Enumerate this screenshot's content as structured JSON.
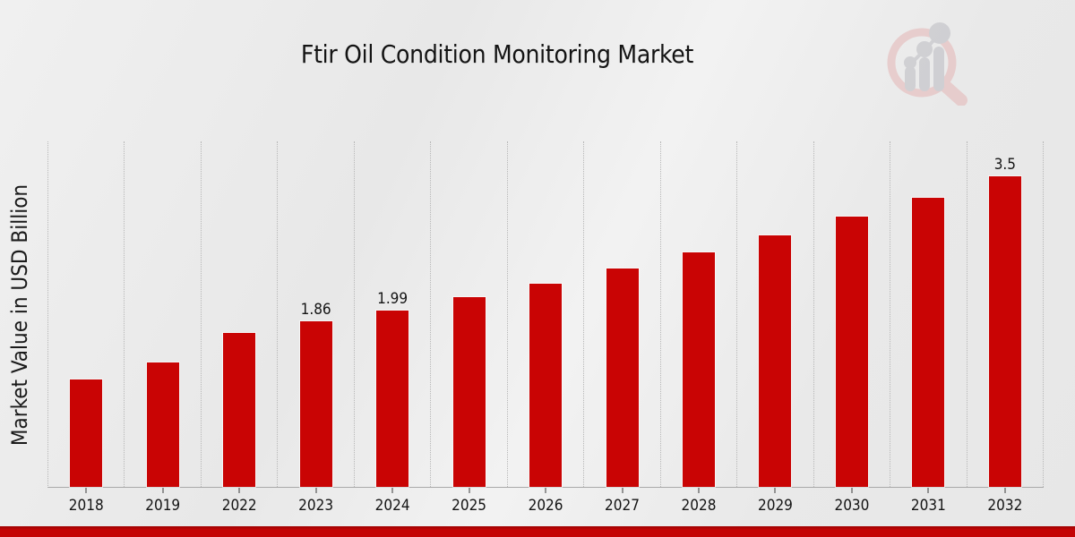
{
  "title": "Ftir Oil Condition Monitoring Market",
  "y_axis_label": "Market Value in USD Billion",
  "chart_data": {
    "type": "bar",
    "title": "Ftir Oil Condition Monitoring Market",
    "xlabel": "",
    "ylabel": "Market Value in USD Billion",
    "categories": [
      "2018",
      "2019",
      "2022",
      "2023",
      "2024",
      "2025",
      "2026",
      "2027",
      "2028",
      "2029",
      "2030",
      "2031",
      "2032"
    ],
    "values": [
      1.21,
      1.4,
      1.73,
      1.86,
      1.99,
      2.14,
      2.29,
      2.46,
      2.64,
      2.83,
      3.04,
      3.26,
      3.5
    ],
    "bar_labels": {
      "2023": "1.86",
      "2024": "1.99",
      "2032": "3.5"
    },
    "ylim": [
      0,
      3.9
    ],
    "bar_color": "#c90404",
    "grid": "vertical-dotted",
    "legend_position": "none"
  },
  "footer": {
    "stripe_color": "#c40404"
  },
  "logo": {
    "name": "magnifier-bar-chart-logo"
  }
}
